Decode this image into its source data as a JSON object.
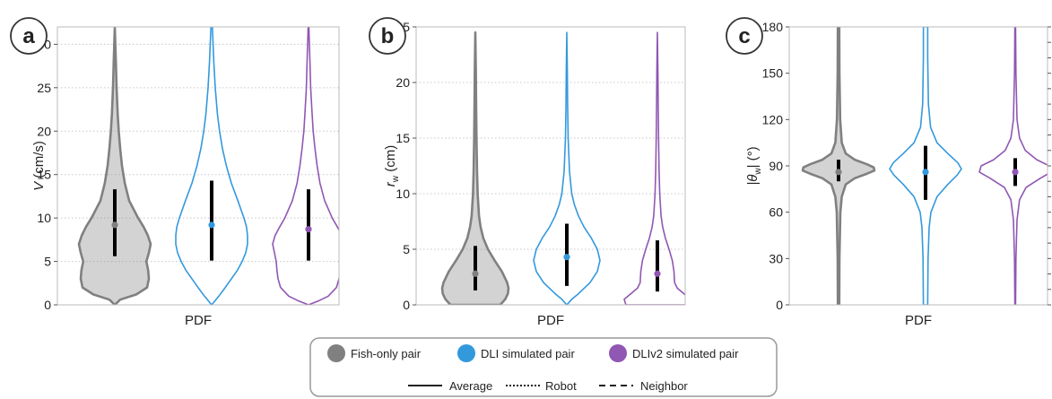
{
  "figure": {
    "xlabel": "PDF",
    "legend": {
      "placement": "bottom-center",
      "groups": [
        {
          "name": "Fish-only pair",
          "color": "#808080"
        },
        {
          "name": "DLI simulated pair",
          "color": "#3399dd"
        },
        {
          "name": "DLIv2 simulated pair",
          "color": "#9057b3"
        }
      ],
      "lines": [
        {
          "name": "Average",
          "style": "solid"
        },
        {
          "name": "Robot",
          "style": "dotted"
        },
        {
          "name": "Neighbor",
          "style": "dashed"
        }
      ]
    }
  },
  "chart_data": [
    {
      "type": "violin",
      "panel": "a",
      "xlabel": "PDF",
      "ylabel_main": "V",
      "ylabel_unit": " (cm/s)",
      "ylim": [
        0,
        32
      ],
      "yticks": [
        0,
        5,
        10,
        15,
        20,
        25,
        30
      ],
      "grid": "horizontal-dotted",
      "series": [
        {
          "name": "Fish-only pair",
          "color": "#808080",
          "mean": 9.2,
          "range": [
            5.6,
            13.3
          ],
          "max": 32,
          "profile": [
            [
              0,
              0
            ],
            [
              0.6,
              0.15
            ],
            [
              1.2,
              0.6
            ],
            [
              2,
              0.9
            ],
            [
              3,
              0.95
            ],
            [
              4,
              0.93
            ],
            [
              5,
              0.88
            ],
            [
              6,
              0.95
            ],
            [
              7,
              1
            ],
            [
              8,
              0.92
            ],
            [
              9,
              0.8
            ],
            [
              10,
              0.65
            ],
            [
              12,
              0.4
            ],
            [
              14,
              0.28
            ],
            [
              16,
              0.2
            ],
            [
              18,
              0.15
            ],
            [
              20,
              0.11
            ],
            [
              22,
              0.08
            ],
            [
              25,
              0.05
            ],
            [
              28,
              0.03
            ],
            [
              32,
              0
            ]
          ]
        },
        {
          "name": "DLI simulated pair",
          "color": "#3399dd",
          "mean": 9.2,
          "range": [
            5.1,
            14.3
          ],
          "max": 32,
          "profile": [
            [
              0,
              0
            ],
            [
              1,
              0.2
            ],
            [
              2,
              0.38
            ],
            [
              3,
              0.55
            ],
            [
              4,
              0.72
            ],
            [
              5,
              0.85
            ],
            [
              6,
              0.95
            ],
            [
              7,
              1
            ],
            [
              8,
              1
            ],
            [
              9,
              0.97
            ],
            [
              10,
              0.9
            ],
            [
              12,
              0.73
            ],
            [
              14,
              0.55
            ],
            [
              16,
              0.41
            ],
            [
              18,
              0.3
            ],
            [
              20,
              0.22
            ],
            [
              22,
              0.16
            ],
            [
              25,
              0.1
            ],
            [
              28,
              0.06
            ],
            [
              32,
              0.02
            ]
          ]
        },
        {
          "name": "DLIv2 simulated pair",
          "color": "#9057b3",
          "mean": 8.7,
          "range": [
            5.1,
            13.3
          ],
          "max": 32,
          "profile": [
            [
              0,
              0
            ],
            [
              0.5,
              0.3
            ],
            [
              1,
              0.55
            ],
            [
              2,
              0.78
            ],
            [
              3,
              0.85
            ],
            [
              4,
              0.88
            ],
            [
              5,
              0.9
            ],
            [
              6,
              0.95
            ],
            [
              7,
              1
            ],
            [
              8,
              0.93
            ],
            [
              9,
              0.8
            ],
            [
              10,
              0.66
            ],
            [
              12,
              0.45
            ],
            [
              14,
              0.32
            ],
            [
              16,
              0.24
            ],
            [
              18,
              0.18
            ],
            [
              20,
              0.13
            ],
            [
              22,
              0.1
            ],
            [
              25,
              0.06
            ],
            [
              28,
              0.04
            ],
            [
              32,
              0.01
            ]
          ]
        }
      ]
    },
    {
      "type": "violin",
      "panel": "b",
      "xlabel": "PDF",
      "ylabel_main": "r",
      "ylabel_sub": "w",
      "ylabel_unit": " (cm)",
      "ylim": [
        0,
        25
      ],
      "yticks": [
        0,
        5,
        10,
        15,
        20,
        25
      ],
      "grid": "horizontal-dotted",
      "series": [
        {
          "name": "Fish-only pair",
          "color": "#808080",
          "mean": 2.8,
          "range": [
            1.3,
            5.3
          ],
          "max": 24.5,
          "profile": [
            [
              0,
              0.75
            ],
            [
              0.5,
              0.9
            ],
            [
              1,
              0.98
            ],
            [
              1.5,
              1
            ],
            [
              2,
              0.96
            ],
            [
              3,
              0.8
            ],
            [
              4,
              0.58
            ],
            [
              5,
              0.38
            ],
            [
              6,
              0.24
            ],
            [
              7,
              0.16
            ],
            [
              8,
              0.11
            ],
            [
              10,
              0.07
            ],
            [
              12,
              0.05
            ],
            [
              15,
              0.035
            ],
            [
              18,
              0.025
            ],
            [
              21,
              0.015
            ],
            [
              24.5,
              0
            ]
          ]
        },
        {
          "name": "DLI simulated pair",
          "color": "#3399dd",
          "mean": 4.3,
          "range": [
            1.7,
            7.3
          ],
          "max": 24.5,
          "profile": [
            [
              0,
              0
            ],
            [
              0.5,
              0.15
            ],
            [
              1,
              0.35
            ],
            [
              2,
              0.7
            ],
            [
              3,
              0.92
            ],
            [
              4,
              1
            ],
            [
              5,
              0.92
            ],
            [
              6,
              0.74
            ],
            [
              7,
              0.52
            ],
            [
              8,
              0.35
            ],
            [
              9,
              0.23
            ],
            [
              10,
              0.15
            ],
            [
              12,
              0.08
            ],
            [
              15,
              0.04
            ],
            [
              18,
              0.025
            ],
            [
              21,
              0.015
            ],
            [
              24.5,
              0
            ]
          ]
        },
        {
          "name": "DLIv2 simulated pair",
          "color": "#9057b3",
          "mean": 2.8,
          "range": [
            1.2,
            5.8
          ],
          "max": 24.5,
          "profile": [
            [
              0,
              0.95
            ],
            [
              0.5,
              1
            ],
            [
              1,
              0.8
            ],
            [
              1.5,
              0.6
            ],
            [
              2,
              0.52
            ],
            [
              3,
              0.5
            ],
            [
              4,
              0.45
            ],
            [
              5,
              0.35
            ],
            [
              6,
              0.24
            ],
            [
              7,
              0.16
            ],
            [
              8,
              0.11
            ],
            [
              10,
              0.07
            ],
            [
              12,
              0.05
            ],
            [
              15,
              0.035
            ],
            [
              18,
              0.025
            ],
            [
              21,
              0.015
            ],
            [
              24.5,
              0
            ]
          ]
        }
      ]
    },
    {
      "type": "violin",
      "panel": "c",
      "xlabel": "PDF",
      "ylabel_main": "|θ",
      "ylabel_sub": "w",
      "ylabel_unit": "| (°)",
      "ylim": [
        0,
        180
      ],
      "yticks": [
        0,
        30,
        60,
        90,
        120,
        150,
        180
      ],
      "grid": "none",
      "series": [
        {
          "name": "Fish-only pair",
          "color": "#808080",
          "mean": 86,
          "range": [
            80,
            94
          ],
          "max": 180,
          "profile": [
            [
              0,
              0.02
            ],
            [
              30,
              0.025
            ],
            [
              60,
              0.05
            ],
            [
              70,
              0.09
            ],
            [
              78,
              0.2
            ],
            [
              82,
              0.45
            ],
            [
              85,
              0.8
            ],
            [
              87,
              1
            ],
            [
              89,
              0.98
            ],
            [
              91,
              0.8
            ],
            [
              94,
              0.45
            ],
            [
              98,
              0.2
            ],
            [
              105,
              0.09
            ],
            [
              120,
              0.045
            ],
            [
              150,
              0.025
            ],
            [
              180,
              0.02
            ]
          ]
        },
        {
          "name": "DLI simulated pair",
          "color": "#3399dd",
          "mean": 86,
          "range": [
            68,
            103
          ],
          "max": 180,
          "profile": [
            [
              0,
              0.06
            ],
            [
              30,
              0.07
            ],
            [
              50,
              0.1
            ],
            [
              60,
              0.15
            ],
            [
              70,
              0.32
            ],
            [
              78,
              0.62
            ],
            [
              84,
              0.88
            ],
            [
              88,
              1
            ],
            [
              92,
              0.9
            ],
            [
              98,
              0.62
            ],
            [
              105,
              0.32
            ],
            [
              115,
              0.14
            ],
            [
              130,
              0.08
            ],
            [
              160,
              0.06
            ],
            [
              180,
              0.06
            ]
          ]
        },
        {
          "name": "DLIv2 simulated pair",
          "color": "#9057b3",
          "mean": 86,
          "range": [
            77,
            95
          ],
          "max": 180,
          "profile": [
            [
              0,
              0.01
            ],
            [
              30,
              0.02
            ],
            [
              55,
              0.05
            ],
            [
              68,
              0.12
            ],
            [
              76,
              0.3
            ],
            [
              82,
              0.7
            ],
            [
              86,
              1
            ],
            [
              90,
              0.95
            ],
            [
              94,
              0.6
            ],
            [
              100,
              0.28
            ],
            [
              108,
              0.12
            ],
            [
              120,
              0.05
            ],
            [
              150,
              0.02
            ],
            [
              180,
              0.01
            ]
          ]
        }
      ]
    }
  ]
}
